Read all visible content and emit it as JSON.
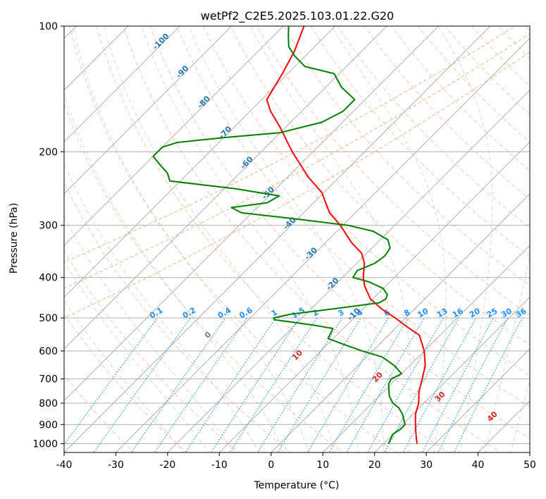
{
  "chart_data": {
    "type": "line",
    "title": "wetPf2_C2E5.2025.103.01.22.G20",
    "xlabel": "Temperature (°C)",
    "ylabel": "Pressure (hPa)",
    "xlim": [
      -40,
      50
    ],
    "ylim": [
      1050,
      100
    ],
    "y_scale": "log",
    "x_ticks": [
      "-40",
      "-30",
      "-20",
      "-10",
      "0",
      "10",
      "20",
      "30",
      "40",
      "50"
    ],
    "y_ticks": [
      "100",
      "200",
      "300",
      "400",
      "500",
      "600",
      "700",
      "800",
      "900",
      "1000"
    ],
    "grid": true,
    "series": [
      {
        "role": "temperature",
        "color": "#ff0000",
        "pressure": [
          1000,
          975,
          950,
          925,
          900,
          850,
          800,
          750,
          700,
          650,
          600,
          550,
          525,
          500,
          475,
          450,
          420,
          400,
          370,
          350,
          330,
          300,
          280,
          250,
          230,
          200,
          175,
          160,
          150,
          130,
          115,
          100
        ],
        "temperature": [
          26.5,
          25.5,
          24.5,
          23.5,
          22.5,
          20.5,
          19.0,
          16.8,
          15.0,
          13.0,
          10.0,
          6.0,
          2.0,
          -2.0,
          -6.5,
          -10.5,
          -14.0,
          -16.0,
          -18.5,
          -21.0,
          -25.0,
          -30.5,
          -35.0,
          -40.5,
          -46.0,
          -54.0,
          -61.0,
          -66.0,
          -69.0,
          -71.0,
          -73.0,
          -76.0
        ]
      },
      {
        "role": "dewpoint",
        "color": "#008000",
        "pressure": [
          1000,
          975,
          950,
          925,
          900,
          870,
          850,
          820,
          800,
          770,
          750,
          720,
          700,
          680,
          650,
          620,
          600,
          580,
          560,
          530,
          520,
          510,
          505,
          500,
          490,
          480,
          470,
          460,
          450,
          440,
          425,
          410,
          400,
          385,
          370,
          355,
          340,
          325,
          310,
          300,
          290,
          280,
          272,
          265,
          255,
          245,
          235,
          225,
          215,
          205,
          195,
          190,
          185,
          180,
          170,
          160,
          150,
          140,
          130,
          125,
          118,
          112,
          106,
          100
        ],
        "temperature": [
          21.0,
          20.5,
          20.0,
          20.5,
          20.5,
          19.0,
          18.0,
          16.0,
          14.0,
          12.0,
          11.0,
          9.5,
          9.0,
          10.0,
          7.0,
          3.0,
          -2.0,
          -6.5,
          -11.0,
          -12.0,
          -16.5,
          -22.0,
          -25.0,
          -25.5,
          -23.0,
          -18.0,
          -13.0,
          -8.0,
          -7.5,
          -8.0,
          -10.0,
          -14.0,
          -18.0,
          -18.5,
          -16.5,
          -16.0,
          -16.5,
          -18.5,
          -23.0,
          -29.0,
          -40.0,
          -52.0,
          -55.0,
          -49.0,
          -48.0,
          -58.0,
          -72.0,
          -74.0,
          -77.0,
          -80.0,
          -80.0,
          -78.0,
          -70.0,
          -60.0,
          -54.0,
          -52.0,
          -52.0,
          -57.0,
          -61.0,
          -68.0,
          -72.0,
          -75.0,
          -77.0,
          -79.0
        ]
      }
    ],
    "isotherm_labels": [
      "-100",
      "-90",
      "-80",
      "-70",
      "-60",
      "-50",
      "-40",
      "-30",
      "-20",
      "-10"
    ],
    "mixing_ratio_labels": [
      "0.1",
      "0.2",
      "0.4",
      "0.6",
      "1",
      "1.5",
      "2",
      "3",
      "4",
      "6",
      "8",
      "10",
      "13",
      "16",
      "20",
      "25",
      "30",
      "36"
    ],
    "mixing_ratio_values": [
      0.1,
      0.2,
      0.4,
      0.6,
      1,
      1.5,
      2,
      3,
      4,
      6,
      8,
      10,
      13,
      16,
      20,
      25,
      30,
      36
    ],
    "moist_adiabat_labels": [
      "0",
      "10",
      "20",
      "30",
      "40"
    ],
    "colors": {
      "isotherm_label": "#1f77b4",
      "mixing_ratio": "#1e90ff",
      "dry_adiabat": "#ffa07a",
      "moist_adiabat": "#8fbc8f",
      "moist_label_zero": "#808080",
      "moist_label": "#d62728",
      "curved_guide": "#deb887",
      "grid": "#b0b0b0"
    }
  }
}
